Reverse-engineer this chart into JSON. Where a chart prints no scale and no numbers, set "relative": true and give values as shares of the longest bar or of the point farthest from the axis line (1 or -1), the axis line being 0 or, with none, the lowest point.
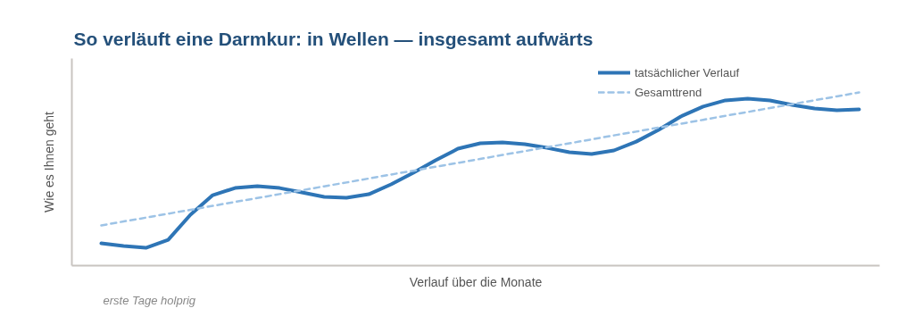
{
  "chart_data": {
    "type": "line",
    "title": "So verläuft eine Darmkur: in Wellen — insgesamt aufwärts",
    "xlabel": "Verlauf über die Monate",
    "ylabel": "Wie es Ihnen geht",
    "annotations": [
      "erste Tage holprig"
    ],
    "relative": true,
    "legend": "top right",
    "categories": [
      null,
      null,
      null,
      null,
      null,
      null,
      null,
      null,
      null,
      null,
      null,
      null,
      null,
      null,
      null,
      null,
      null,
      null,
      null,
      null,
      null,
      null,
      null,
      null,
      null,
      null,
      null,
      null,
      null,
      null,
      null,
      null,
      null,
      null,
      null
    ],
    "series": [
      {
        "name": "tatsächlicher Verlauf",
        "color": "#2e75b6",
        "line_style": "solid",
        "values": [
          0.129,
          0.113,
          0.103,
          0.149,
          0.294,
          0.407,
          0.448,
          0.459,
          0.448,
          0.423,
          0.397,
          0.392,
          0.412,
          0.469,
          0.536,
          0.608,
          0.675,
          0.706,
          0.711,
          0.701,
          0.68,
          0.655,
          0.644,
          0.665,
          0.716,
          0.784,
          0.861,
          0.918,
          0.954,
          0.964,
          0.954,
          0.928,
          0.907,
          0.897,
          0.902
        ]
      },
      {
        "name": "Gesamttrend",
        "color": "#9dc3e6",
        "line_style": "dashed",
        "values": [
          0.232,
          0.255,
          0.277,
          0.3,
          0.322,
          0.345,
          0.368,
          0.39,
          0.413,
          0.435,
          0.458,
          0.48,
          0.503,
          0.526,
          0.548,
          0.571,
          0.593,
          0.616,
          0.639,
          0.661,
          0.684,
          0.706,
          0.729,
          0.752,
          0.774,
          0.797,
          0.819,
          0.842,
          0.865,
          0.887,
          0.91,
          0.932,
          0.955,
          0.977,
          1.0
        ]
      }
    ]
  }
}
